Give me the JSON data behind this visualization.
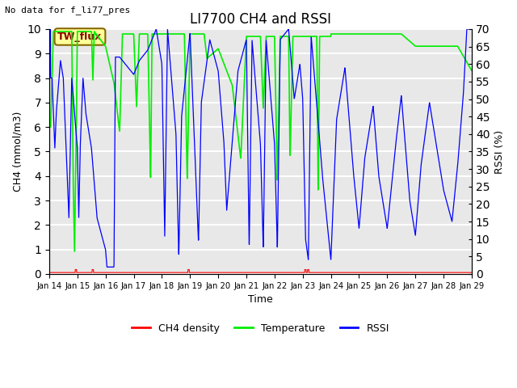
{
  "title": "LI7700 CH4 and RSSI",
  "top_left_text": "No data for f_li77_pres",
  "legend_box_text": "TW_flux",
  "xlabel": "Time",
  "ylabel_left": "CH4 (mmol/m3)",
  "ylabel_right": "RSSI (%)",
  "ylim_left": [
    0.0,
    10.0
  ],
  "ylim_right": [
    0,
    70
  ],
  "yticks_left": [
    0.0,
    1.0,
    2.0,
    3.0,
    4.0,
    5.0,
    6.0,
    7.0,
    8.0,
    9.0,
    10.0
  ],
  "yticks_right": [
    0,
    5,
    10,
    15,
    20,
    25,
    30,
    35,
    40,
    45,
    50,
    55,
    60,
    65,
    70
  ],
  "xtick_labels": [
    "Jan 14",
    "Jan 15",
    "Jan 16",
    "Jan 17",
    "Jan 18",
    "Jan 19",
    "Jan 20",
    "Jan 21",
    "Jan 22",
    "Jan 23",
    "Jan 24",
    "Jan 25",
    "Jan 26",
    "Jan 27",
    "Jan 28",
    "Jan 29"
  ],
  "bg_color": "#ffffff",
  "plot_bg_color": "#e8e8e8",
  "grid_color": "#ffffff",
  "ch4_color": "#ff0000",
  "temp_color": "#00ee00",
  "rssi_color": "#0000ff",
  "legend_box_bg": "#ffff99",
  "legend_box_edge": "#886600",
  "legend_box_text_color": "#880000",
  "figsize": [
    6.4,
    4.8
  ],
  "dpi": 100
}
